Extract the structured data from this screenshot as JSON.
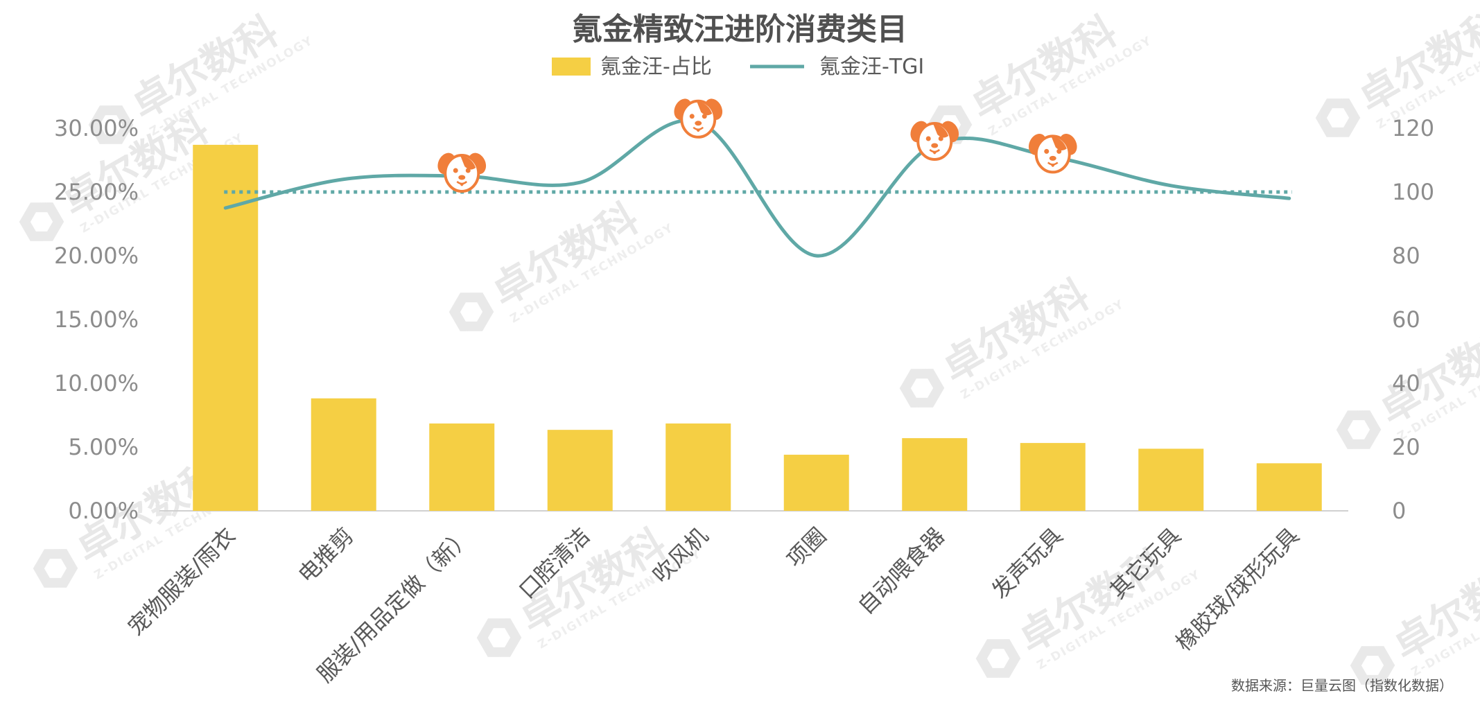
{
  "chart_data": {
    "type": "bar",
    "title": "氪金精致汪进阶消费类目",
    "categories": [
      "宠物服装/雨衣",
      "电推剪",
      "服装/用品定做（新）",
      "口腔清洁",
      "吹风机",
      "项圈",
      "自动喂食器",
      "发声玩具",
      "其它玩具",
      "橡胶球/球形玩具"
    ],
    "series": [
      {
        "name": "氪金汪-占比",
        "type": "bar",
        "axis": "left",
        "color": "#F5CF44",
        "values": [
          0.287,
          0.0882,
          0.0685,
          0.0635,
          0.0685,
          0.044,
          0.057,
          0.0532,
          0.0487,
          0.0373
        ]
      },
      {
        "name": "氪金汪-TGI",
        "type": "line",
        "axis": "right",
        "color": "#5FA8A6",
        "values": [
          95,
          104,
          105,
          103,
          122,
          80,
          115,
          111,
          102,
          98
        ]
      }
    ],
    "reference_line": {
      "axis": "right",
      "value": 100,
      "style": "dotted",
      "color": "#5FA8A6"
    },
    "markers": {
      "icon": "dog-face-icon",
      "color": "#F07E3A",
      "categories": [
        "服装/用品定做（新）",
        "吹风机",
        "自动喂食器",
        "发声玩具"
      ]
    },
    "left_axis": {
      "ylim": [
        0,
        0.3
      ],
      "ticks": [
        "0.00%",
        "5.00%",
        "10.00%",
        "15.00%",
        "20.00%",
        "25.00%",
        "30.00%"
      ],
      "tick_values": [
        0,
        0.05,
        0.1,
        0.15,
        0.2,
        0.25,
        0.3
      ]
    },
    "right_axis": {
      "ylim": [
        0,
        120
      ],
      "ticks": [
        "0",
        "20",
        "40",
        "60",
        "80",
        "100",
        "120"
      ],
      "tick_values": [
        0,
        20,
        40,
        60,
        80,
        100,
        120
      ]
    },
    "legend_position": "top-center",
    "grid": false
  },
  "source_note": "数据来源：巨量云图（指数化数据）",
  "watermark": {
    "text": "卓尔数科",
    "sub": "Z-DIGITAL TECHNOLOGY"
  },
  "colors": {
    "text": "#595959",
    "axis_text": "#8c8c8c",
    "axis_line": "#d0d0d0"
  }
}
